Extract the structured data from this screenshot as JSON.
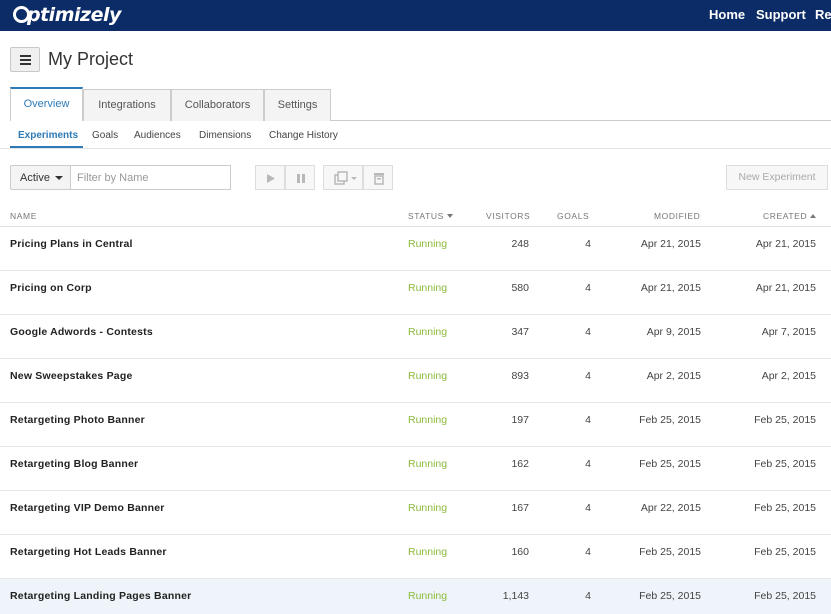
{
  "topbar": {
    "logo_text": "ptimizely",
    "nav": [
      {
        "label": "Home"
      },
      {
        "label": "Support"
      },
      {
        "label": "Re"
      }
    ]
  },
  "project": {
    "title": "My Project"
  },
  "main_tabs": [
    {
      "label": "Overview",
      "active": true
    },
    {
      "label": "Integrations",
      "active": false
    },
    {
      "label": "Collaborators",
      "active": false
    },
    {
      "label": "Settings",
      "active": false
    }
  ],
  "sub_tabs": [
    {
      "label": "Experiments",
      "active": true
    },
    {
      "label": "Goals",
      "active": false
    },
    {
      "label": "Audiences",
      "active": false
    },
    {
      "label": "Dimensions",
      "active": false
    },
    {
      "label": "Change History",
      "active": false
    }
  ],
  "toolbar": {
    "status_filter": "Active",
    "filter_placeholder": "Filter by Name",
    "filter_value": "",
    "new_experiment_label": "New Experiment",
    "tools": [
      "play-icon",
      "pause-icon",
      "duplicate-icon",
      "archive-icon"
    ]
  },
  "table": {
    "columns": {
      "name": "NAME",
      "status": "STATUS",
      "visitors": "VISITORS",
      "goals": "GOALS",
      "modified": "MODIFIED",
      "created": "CREATED"
    },
    "rows": [
      {
        "name": "Pricing Plans in Central",
        "status": "Running",
        "visitors": "248",
        "goals": "4",
        "modified": "Apr 21, 2015",
        "created": "Apr 21, 2015"
      },
      {
        "name": "Pricing on Corp",
        "status": "Running",
        "visitors": "580",
        "goals": "4",
        "modified": "Apr 21, 2015",
        "created": "Apr 21, 2015"
      },
      {
        "name": "Google Adwords - Contests",
        "status": "Running",
        "visitors": "347",
        "goals": "4",
        "modified": "Apr 9, 2015",
        "created": "Apr 7, 2015"
      },
      {
        "name": "New Sweepstakes Page",
        "status": "Running",
        "visitors": "893",
        "goals": "4",
        "modified": "Apr 2, 2015",
        "created": "Apr 2, 2015"
      },
      {
        "name": "Retargeting Photo Banner",
        "status": "Running",
        "visitors": "197",
        "goals": "4",
        "modified": "Feb 25, 2015",
        "created": "Feb 25, 2015"
      },
      {
        "name": "Retargeting Blog Banner",
        "status": "Running",
        "visitors": "162",
        "goals": "4",
        "modified": "Feb 25, 2015",
        "created": "Feb 25, 2015"
      },
      {
        "name": "Retargeting VIP Demo Banner",
        "status": "Running",
        "visitors": "167",
        "goals": "4",
        "modified": "Apr 22, 2015",
        "created": "Feb 25, 2015"
      },
      {
        "name": "Retargeting Hot Leads Banner",
        "status": "Running",
        "visitors": "160",
        "goals": "4",
        "modified": "Feb 25, 2015",
        "created": "Feb 25, 2015"
      },
      {
        "name": "Retargeting Landing Pages Banner",
        "status": "Running",
        "visitors": "1,143",
        "goals": "4",
        "modified": "Feb 25, 2015",
        "created": "Feb 25, 2015"
      }
    ]
  },
  "colors": {
    "topbar_bg": "#0c2c67",
    "accent_blue": "#2d7ab7",
    "running_green": "#8bbb3b",
    "row_highlight": "#eef4fa"
  }
}
